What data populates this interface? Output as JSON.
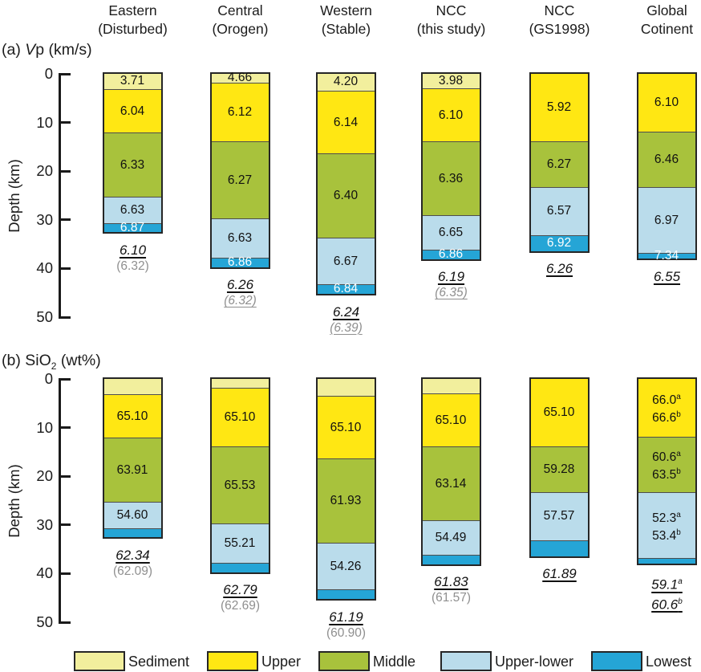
{
  "colors": {
    "sediment": "#F2EF9D",
    "upper": "#FFE713",
    "middle": "#A8C23C",
    "upper_lower": "#BADCEB",
    "lowest": "#25A5D6",
    "column_border": "#262626",
    "divider": "#4d4d4d",
    "gray_text": "#8F8F8F"
  },
  "region_headers": [
    {
      "line1": "Eastern",
      "line2": "(Disturbed)"
    },
    {
      "line1": "Central",
      "line2": "(Orogen)"
    },
    {
      "line1": "Western",
      "line2": "(Stable)"
    },
    {
      "line1": "NCC",
      "line2": "(this study)"
    },
    {
      "line1": "NCC",
      "line2": "(GS1998)"
    },
    {
      "line1": "Global",
      "line2": "Cotinent"
    }
  ],
  "panels_meta": {
    "a": {
      "prefix": "(a) ",
      "italic_var": "V",
      "suffix": "p (km/s)",
      "ylabel": "Depth (km)"
    },
    "b": {
      "prefix": "(b) SiO",
      "subscript": "2",
      "suffix": " (wt%)",
      "ylabel": "Depth (km)"
    }
  },
  "legend": [
    {
      "label": "Sediment",
      "color_key": "sediment"
    },
    {
      "label": "Upper",
      "color_key": "upper"
    },
    {
      "label": "Middle",
      "color_key": "middle"
    },
    {
      "label": "Upper-lower",
      "color_key": "upper_lower"
    },
    {
      "label": "Lowest",
      "color_key": "lowest"
    }
  ],
  "chart_data": {
    "type": "bar",
    "subtype": "stacked-depth-columns",
    "depth_axis": {
      "label": "Depth (km)",
      "ticks": [
        0,
        10,
        20,
        30,
        40,
        50
      ],
      "range": [
        0,
        50
      ],
      "unit": "km"
    },
    "layers": [
      "Sediment",
      "Upper",
      "Middle",
      "Upper-lower",
      "Lowest"
    ],
    "panels": [
      {
        "id": "a",
        "quantity": "Vp (km/s)",
        "columns": [
          {
            "region": "Eastern (Disturbed)",
            "segments": [
              {
                "layer": "sediment",
                "top_km": 0,
                "bottom_km": 3.2,
                "value": "3.71"
              },
              {
                "layer": "upper",
                "top_km": 3.2,
                "bottom_km": 12.2,
                "value": "6.04"
              },
              {
                "layer": "middle",
                "top_km": 12.2,
                "bottom_km": 25.3,
                "value": "6.33"
              },
              {
                "layer": "upper_lower",
                "top_km": 25.3,
                "bottom_km": 30.8,
                "value": "6.63"
              },
              {
                "layer": "lowest",
                "top_km": 30.8,
                "bottom_km": 32.6,
                "value": "6.87",
                "text_color": "#ffffff"
              }
            ],
            "average": "6.10",
            "average_paren": "(6.32)",
            "paren_style": "plain"
          },
          {
            "region": "Central (Orogen)",
            "segments": [
              {
                "layer": "sediment",
                "top_km": 0,
                "bottom_km": 1.9,
                "value": "4.66"
              },
              {
                "layer": "upper",
                "top_km": 1.9,
                "bottom_km": 14.0,
                "value": "6.12"
              },
              {
                "layer": "middle",
                "top_km": 14.0,
                "bottom_km": 29.8,
                "value": "6.27"
              },
              {
                "layer": "upper_lower",
                "top_km": 29.8,
                "bottom_km": 37.9,
                "value": "6.63"
              },
              {
                "layer": "lowest",
                "top_km": 37.9,
                "bottom_km": 39.8,
                "value": "6.86",
                "text_color": "#ffffff"
              }
            ],
            "average": "6.26",
            "average_paren": "(6.32)",
            "paren_style": "italic-underline"
          },
          {
            "region": "Western (Stable)",
            "segments": [
              {
                "layer": "sediment",
                "top_km": 0,
                "bottom_km": 3.5,
                "value": "4.20"
              },
              {
                "layer": "upper",
                "top_km": 3.5,
                "bottom_km": 16.5,
                "value": "6.14"
              },
              {
                "layer": "middle",
                "top_km": 16.5,
                "bottom_km": 33.8,
                "value": "6.40"
              },
              {
                "layer": "upper_lower",
                "top_km": 33.8,
                "bottom_km": 43.3,
                "value": "6.67"
              },
              {
                "layer": "lowest",
                "top_km": 43.3,
                "bottom_km": 45.3,
                "value": "6.84",
                "text_color": "#ffffff"
              }
            ],
            "average": "6.24",
            "average_paren": "(6.39)",
            "paren_style": "italic-underline"
          },
          {
            "region": "NCC (this study)",
            "segments": [
              {
                "layer": "sediment",
                "top_km": 0,
                "bottom_km": 3.0,
                "value": "3.98"
              },
              {
                "layer": "upper",
                "top_km": 3.0,
                "bottom_km": 14.0,
                "value": "6.10"
              },
              {
                "layer": "middle",
                "top_km": 14.0,
                "bottom_km": 29.1,
                "value": "6.36"
              },
              {
                "layer": "upper_lower",
                "top_km": 29.1,
                "bottom_km": 36.2,
                "value": "6.65"
              },
              {
                "layer": "lowest",
                "top_km": 36.2,
                "bottom_km": 38.2,
                "value": "6.86",
                "text_color": "#ffffff"
              }
            ],
            "average": "6.19",
            "average_paren": "(6.35)",
            "paren_style": "italic-underline"
          },
          {
            "region": "NCC (GS1998)",
            "segments": [
              {
                "layer": "upper",
                "top_km": 0,
                "bottom_km": 14.0,
                "value": "5.92"
              },
              {
                "layer": "middle",
                "top_km": 14.0,
                "bottom_km": 23.4,
                "value": "6.27"
              },
              {
                "layer": "upper_lower",
                "top_km": 23.4,
                "bottom_km": 33.2,
                "value": "6.57"
              },
              {
                "layer": "lowest",
                "top_km": 33.2,
                "bottom_km": 36.5,
                "value": "6.92",
                "text_color": "#ffffff"
              }
            ],
            "average": "6.26"
          },
          {
            "region": "Global Cotinent",
            "segments": [
              {
                "layer": "upper",
                "top_km": 0,
                "bottom_km": 12.0,
                "value": "6.10"
              },
              {
                "layer": "middle",
                "top_km": 12.0,
                "bottom_km": 23.4,
                "value": "6.46"
              },
              {
                "layer": "upper_lower",
                "top_km": 23.4,
                "bottom_km": 36.9,
                "value": "6.97"
              },
              {
                "layer": "lowest",
                "top_km": 36.9,
                "bottom_km": 38.1,
                "value": "7.34",
                "text_color": "#ffffff"
              }
            ],
            "average": "6.55"
          }
        ]
      },
      {
        "id": "b",
        "quantity": "SiO2 (wt%)",
        "columns": [
          {
            "region": "Eastern (Disturbed)",
            "segments": [
              {
                "layer": "sediment",
                "top_km": 0,
                "bottom_km": 3.2
              },
              {
                "layer": "upper",
                "top_km": 3.2,
                "bottom_km": 12.2,
                "value": "65.10"
              },
              {
                "layer": "middle",
                "top_km": 12.2,
                "bottom_km": 25.3,
                "value": "63.91"
              },
              {
                "layer": "upper_lower",
                "top_km": 25.3,
                "bottom_km": 30.8,
                "value": "54.60"
              },
              {
                "layer": "lowest",
                "top_km": 30.8,
                "bottom_km": 32.6
              }
            ],
            "average": "62.34",
            "average_paren": "(62.09)",
            "paren_style": "plain"
          },
          {
            "region": "Central (Orogen)",
            "segments": [
              {
                "layer": "sediment",
                "top_km": 0,
                "bottom_km": 1.9
              },
              {
                "layer": "upper",
                "top_km": 1.9,
                "bottom_km": 14.0,
                "value": "65.10"
              },
              {
                "layer": "middle",
                "top_km": 14.0,
                "bottom_km": 29.8,
                "value": "65.53"
              },
              {
                "layer": "upper_lower",
                "top_km": 29.8,
                "bottom_km": 37.9,
                "value": "55.21"
              },
              {
                "layer": "lowest",
                "top_km": 37.9,
                "bottom_km": 39.8
              }
            ],
            "average": "62.79",
            "average_paren": "(62.69)",
            "paren_style": "plain"
          },
          {
            "region": "Western (Stable)",
            "segments": [
              {
                "layer": "sediment",
                "top_km": 0,
                "bottom_km": 3.5
              },
              {
                "layer": "upper",
                "top_km": 3.5,
                "bottom_km": 16.5,
                "value": "65.10"
              },
              {
                "layer": "middle",
                "top_km": 16.5,
                "bottom_km": 33.8,
                "value": "61.93"
              },
              {
                "layer": "upper_lower",
                "top_km": 33.8,
                "bottom_km": 43.3,
                "value": "54.26"
              },
              {
                "layer": "lowest",
                "top_km": 43.3,
                "bottom_km": 45.3
              }
            ],
            "average": "61.19",
            "average_paren": "(60.90)",
            "paren_style": "plain"
          },
          {
            "region": "NCC (this study)",
            "segments": [
              {
                "layer": "sediment",
                "top_km": 0,
                "bottom_km": 3.0
              },
              {
                "layer": "upper",
                "top_km": 3.0,
                "bottom_km": 14.0,
                "value": "65.10"
              },
              {
                "layer": "middle",
                "top_km": 14.0,
                "bottom_km": 29.1,
                "value": "63.14"
              },
              {
                "layer": "upper_lower",
                "top_km": 29.1,
                "bottom_km": 36.2,
                "value": "54.49"
              },
              {
                "layer": "lowest",
                "top_km": 36.2,
                "bottom_km": 38.2
              }
            ],
            "average": "61.83",
            "average_paren": "(61.57)",
            "paren_style": "plain"
          },
          {
            "region": "NCC (GS1998)",
            "segments": [
              {
                "layer": "upper",
                "top_km": 0,
                "bottom_km": 14.0,
                "value": "65.10"
              },
              {
                "layer": "middle",
                "top_km": 14.0,
                "bottom_km": 23.4,
                "value": "59.28"
              },
              {
                "layer": "upper_lower",
                "top_km": 23.4,
                "bottom_km": 33.2,
                "value": "57.57"
              },
              {
                "layer": "lowest",
                "top_km": 33.2,
                "bottom_km": 36.5
              }
            ],
            "average": "61.89"
          },
          {
            "region": "Global Cotinent",
            "segments": [
              {
                "layer": "upper",
                "top_km": 0,
                "bottom_km": 12.0,
                "value_lines": [
                  "66.0^a",
                  "66.6^b"
                ]
              },
              {
                "layer": "middle",
                "top_km": 12.0,
                "bottom_km": 23.4,
                "value_lines": [
                  "60.6^a",
                  "63.5^b"
                ]
              },
              {
                "layer": "upper_lower",
                "top_km": 23.4,
                "bottom_km": 36.9,
                "value_lines": [
                  "52.3^a",
                  "53.4^b"
                ]
              },
              {
                "layer": "lowest",
                "top_km": 36.9,
                "bottom_km": 38.1
              }
            ],
            "average_lines": [
              "59.1^a",
              "60.6^b"
            ]
          }
        ]
      }
    ]
  }
}
